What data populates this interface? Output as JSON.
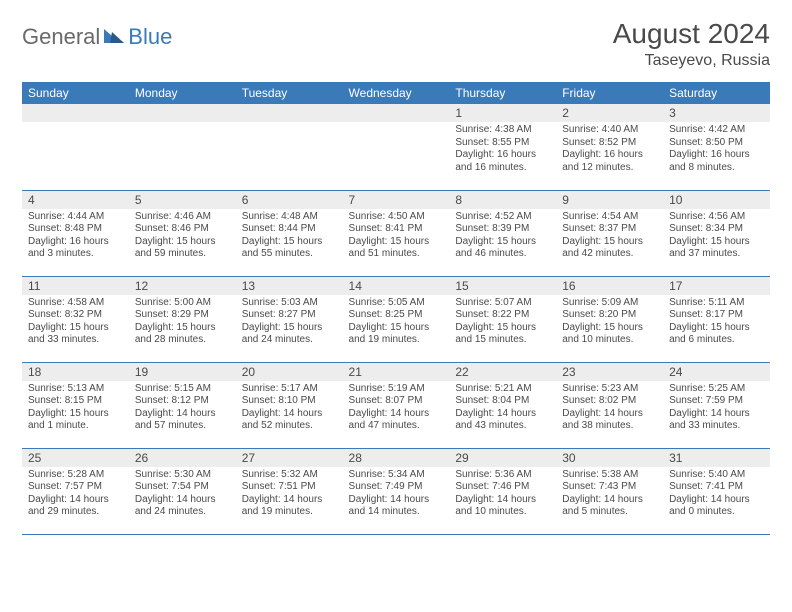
{
  "logo": {
    "text1": "General",
    "text2": "Blue"
  },
  "title": "August 2024",
  "location": "Taseyevo, Russia",
  "colors": {
    "header_bg": "#3a7ab8",
    "header_text": "#ffffff",
    "daynum_bg": "#ededed",
    "text": "#4a4a4a",
    "row_border": "#3a7ab8"
  },
  "weekdays": [
    "Sunday",
    "Monday",
    "Tuesday",
    "Wednesday",
    "Thursday",
    "Friday",
    "Saturday"
  ],
  "weeks": [
    [
      null,
      null,
      null,
      null,
      {
        "n": "1",
        "sr": "4:38 AM",
        "ss": "8:55 PM",
        "dl": "16 hours and 16 minutes."
      },
      {
        "n": "2",
        "sr": "4:40 AM",
        "ss": "8:52 PM",
        "dl": "16 hours and 12 minutes."
      },
      {
        "n": "3",
        "sr": "4:42 AM",
        "ss": "8:50 PM",
        "dl": "16 hours and 8 minutes."
      }
    ],
    [
      {
        "n": "4",
        "sr": "4:44 AM",
        "ss": "8:48 PM",
        "dl": "16 hours and 3 minutes."
      },
      {
        "n": "5",
        "sr": "4:46 AM",
        "ss": "8:46 PM",
        "dl": "15 hours and 59 minutes."
      },
      {
        "n": "6",
        "sr": "4:48 AM",
        "ss": "8:44 PM",
        "dl": "15 hours and 55 minutes."
      },
      {
        "n": "7",
        "sr": "4:50 AM",
        "ss": "8:41 PM",
        "dl": "15 hours and 51 minutes."
      },
      {
        "n": "8",
        "sr": "4:52 AM",
        "ss": "8:39 PM",
        "dl": "15 hours and 46 minutes."
      },
      {
        "n": "9",
        "sr": "4:54 AM",
        "ss": "8:37 PM",
        "dl": "15 hours and 42 minutes."
      },
      {
        "n": "10",
        "sr": "4:56 AM",
        "ss": "8:34 PM",
        "dl": "15 hours and 37 minutes."
      }
    ],
    [
      {
        "n": "11",
        "sr": "4:58 AM",
        "ss": "8:32 PM",
        "dl": "15 hours and 33 minutes."
      },
      {
        "n": "12",
        "sr": "5:00 AM",
        "ss": "8:29 PM",
        "dl": "15 hours and 28 minutes."
      },
      {
        "n": "13",
        "sr": "5:03 AM",
        "ss": "8:27 PM",
        "dl": "15 hours and 24 minutes."
      },
      {
        "n": "14",
        "sr": "5:05 AM",
        "ss": "8:25 PM",
        "dl": "15 hours and 19 minutes."
      },
      {
        "n": "15",
        "sr": "5:07 AM",
        "ss": "8:22 PM",
        "dl": "15 hours and 15 minutes."
      },
      {
        "n": "16",
        "sr": "5:09 AM",
        "ss": "8:20 PM",
        "dl": "15 hours and 10 minutes."
      },
      {
        "n": "17",
        "sr": "5:11 AM",
        "ss": "8:17 PM",
        "dl": "15 hours and 6 minutes."
      }
    ],
    [
      {
        "n": "18",
        "sr": "5:13 AM",
        "ss": "8:15 PM",
        "dl": "15 hours and 1 minute."
      },
      {
        "n": "19",
        "sr": "5:15 AM",
        "ss": "8:12 PM",
        "dl": "14 hours and 57 minutes."
      },
      {
        "n": "20",
        "sr": "5:17 AM",
        "ss": "8:10 PM",
        "dl": "14 hours and 52 minutes."
      },
      {
        "n": "21",
        "sr": "5:19 AM",
        "ss": "8:07 PM",
        "dl": "14 hours and 47 minutes."
      },
      {
        "n": "22",
        "sr": "5:21 AM",
        "ss": "8:04 PM",
        "dl": "14 hours and 43 minutes."
      },
      {
        "n": "23",
        "sr": "5:23 AM",
        "ss": "8:02 PM",
        "dl": "14 hours and 38 minutes."
      },
      {
        "n": "24",
        "sr": "5:25 AM",
        "ss": "7:59 PM",
        "dl": "14 hours and 33 minutes."
      }
    ],
    [
      {
        "n": "25",
        "sr": "5:28 AM",
        "ss": "7:57 PM",
        "dl": "14 hours and 29 minutes."
      },
      {
        "n": "26",
        "sr": "5:30 AM",
        "ss": "7:54 PM",
        "dl": "14 hours and 24 minutes."
      },
      {
        "n": "27",
        "sr": "5:32 AM",
        "ss": "7:51 PM",
        "dl": "14 hours and 19 minutes."
      },
      {
        "n": "28",
        "sr": "5:34 AM",
        "ss": "7:49 PM",
        "dl": "14 hours and 14 minutes."
      },
      {
        "n": "29",
        "sr": "5:36 AM",
        "ss": "7:46 PM",
        "dl": "14 hours and 10 minutes."
      },
      {
        "n": "30",
        "sr": "5:38 AM",
        "ss": "7:43 PM",
        "dl": "14 hours and 5 minutes."
      },
      {
        "n": "31",
        "sr": "5:40 AM",
        "ss": "7:41 PM",
        "dl": "14 hours and 0 minutes."
      }
    ]
  ],
  "labels": {
    "sunrise": "Sunrise:",
    "sunset": "Sunset:",
    "daylight": "Daylight:"
  }
}
